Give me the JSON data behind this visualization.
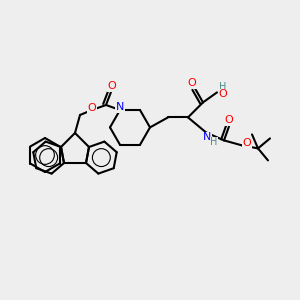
{
  "bg_color": "#eeeeee",
  "bond_color": "#000000",
  "bond_width": 1.5,
  "atom_colors": {
    "O": "#ff0000",
    "N": "#0000ff",
    "H": "#4a8a8a",
    "C": "#000000"
  },
  "font_size_atom": 7,
  "font_size_label": 7
}
